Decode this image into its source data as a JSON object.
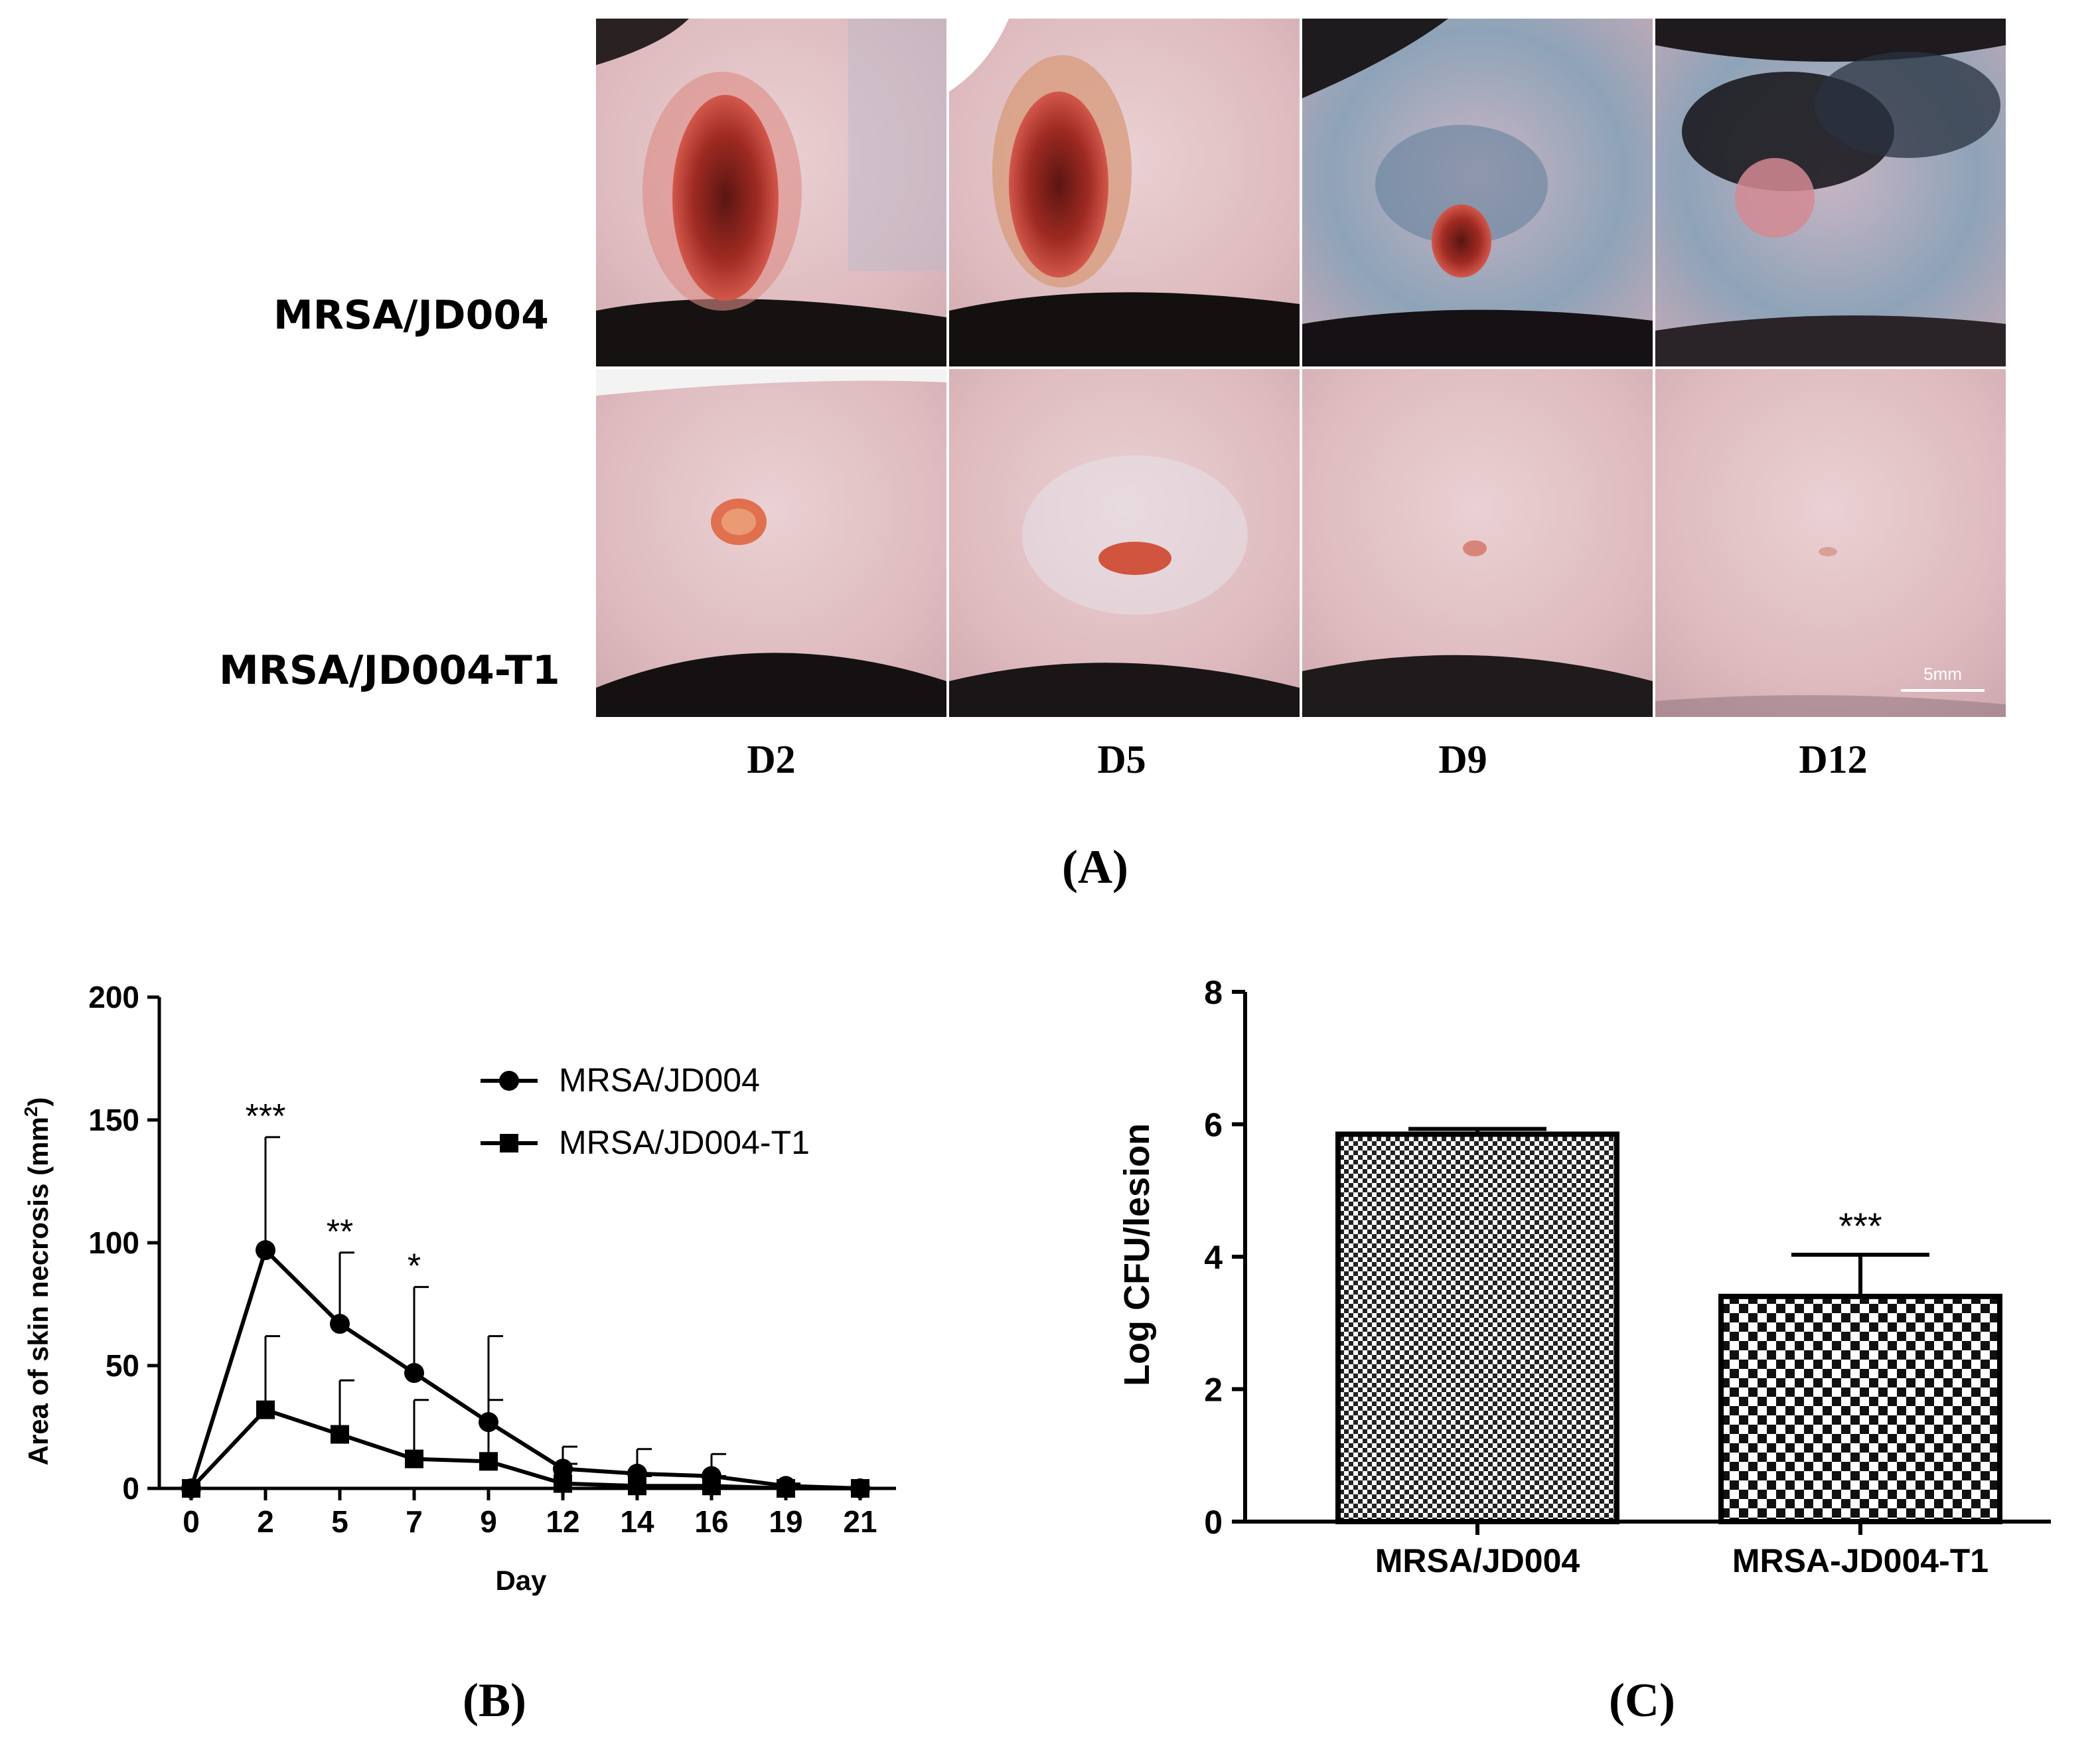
{
  "panel_a": {
    "row_labels": [
      "MRSA/JD004",
      "MRSA/JD004-T1"
    ],
    "day_labels": [
      "D2",
      "D5",
      "D9",
      "D12"
    ],
    "scale_bar": "5mm",
    "panel_label": "(A)"
  },
  "panel_b_label": "(B)",
  "panel_c_label": "(C)",
  "chart_data": [
    {
      "type": "line",
      "title": "",
      "xlabel": "Day",
      "ylabel": "Area of skin necrosis (mm2)",
      "ylabel_main": "Area of skin necrosis (mm",
      "ylabel_sup": "2",
      "ylabel_end": ")",
      "x": [
        0,
        2,
        5,
        7,
        9,
        12,
        14,
        16,
        19,
        21
      ],
      "x_tick_labels": [
        "0",
        "2",
        "5",
        "7",
        "9",
        "12",
        "14",
        "16",
        "19",
        "21"
      ],
      "ylim": [
        0,
        200
      ],
      "y_ticks": [
        0,
        50,
        100,
        150,
        200
      ],
      "y_tick_labels": [
        "0",
        "50",
        "100",
        "150",
        "200"
      ],
      "legend_position": "top-right",
      "series": [
        {
          "name": "MRSA/JD004",
          "marker": "circle",
          "values": [
            0,
            97,
            67,
            47,
            27,
            8,
            6,
            5,
            1,
            0
          ],
          "error_upper": [
            0,
            143,
            96,
            82,
            62,
            17,
            16,
            14,
            2,
            0
          ]
        },
        {
          "name": "MRSA/JD004-T1",
          "marker": "square",
          "values": [
            0,
            32,
            22,
            12,
            11,
            2,
            1,
            1,
            0,
            0
          ],
          "error_upper": [
            0,
            62,
            44,
            36,
            36,
            10,
            5,
            5,
            1,
            0
          ]
        }
      ],
      "annotations": [
        {
          "x": 2,
          "text": "***"
        },
        {
          "x": 5,
          "text": "**"
        },
        {
          "x": 7,
          "text": "*"
        }
      ]
    },
    {
      "type": "bar",
      "title": "",
      "xlabel": "",
      "ylabel": "Log CFU/lesion",
      "categories": [
        "MRSA/JD004",
        "MRSA-JD004-T1"
      ],
      "values": [
        5.85,
        3.4
      ],
      "error_upper": [
        5.93,
        4.03
      ],
      "ylim": [
        0,
        8
      ],
      "y_ticks": [
        0,
        2,
        4,
        6,
        8
      ],
      "y_tick_labels": [
        "0",
        "2",
        "4",
        "6",
        "8"
      ],
      "annotations": [
        {
          "category": "MRSA-JD004-T1",
          "text": "***"
        }
      ]
    }
  ]
}
